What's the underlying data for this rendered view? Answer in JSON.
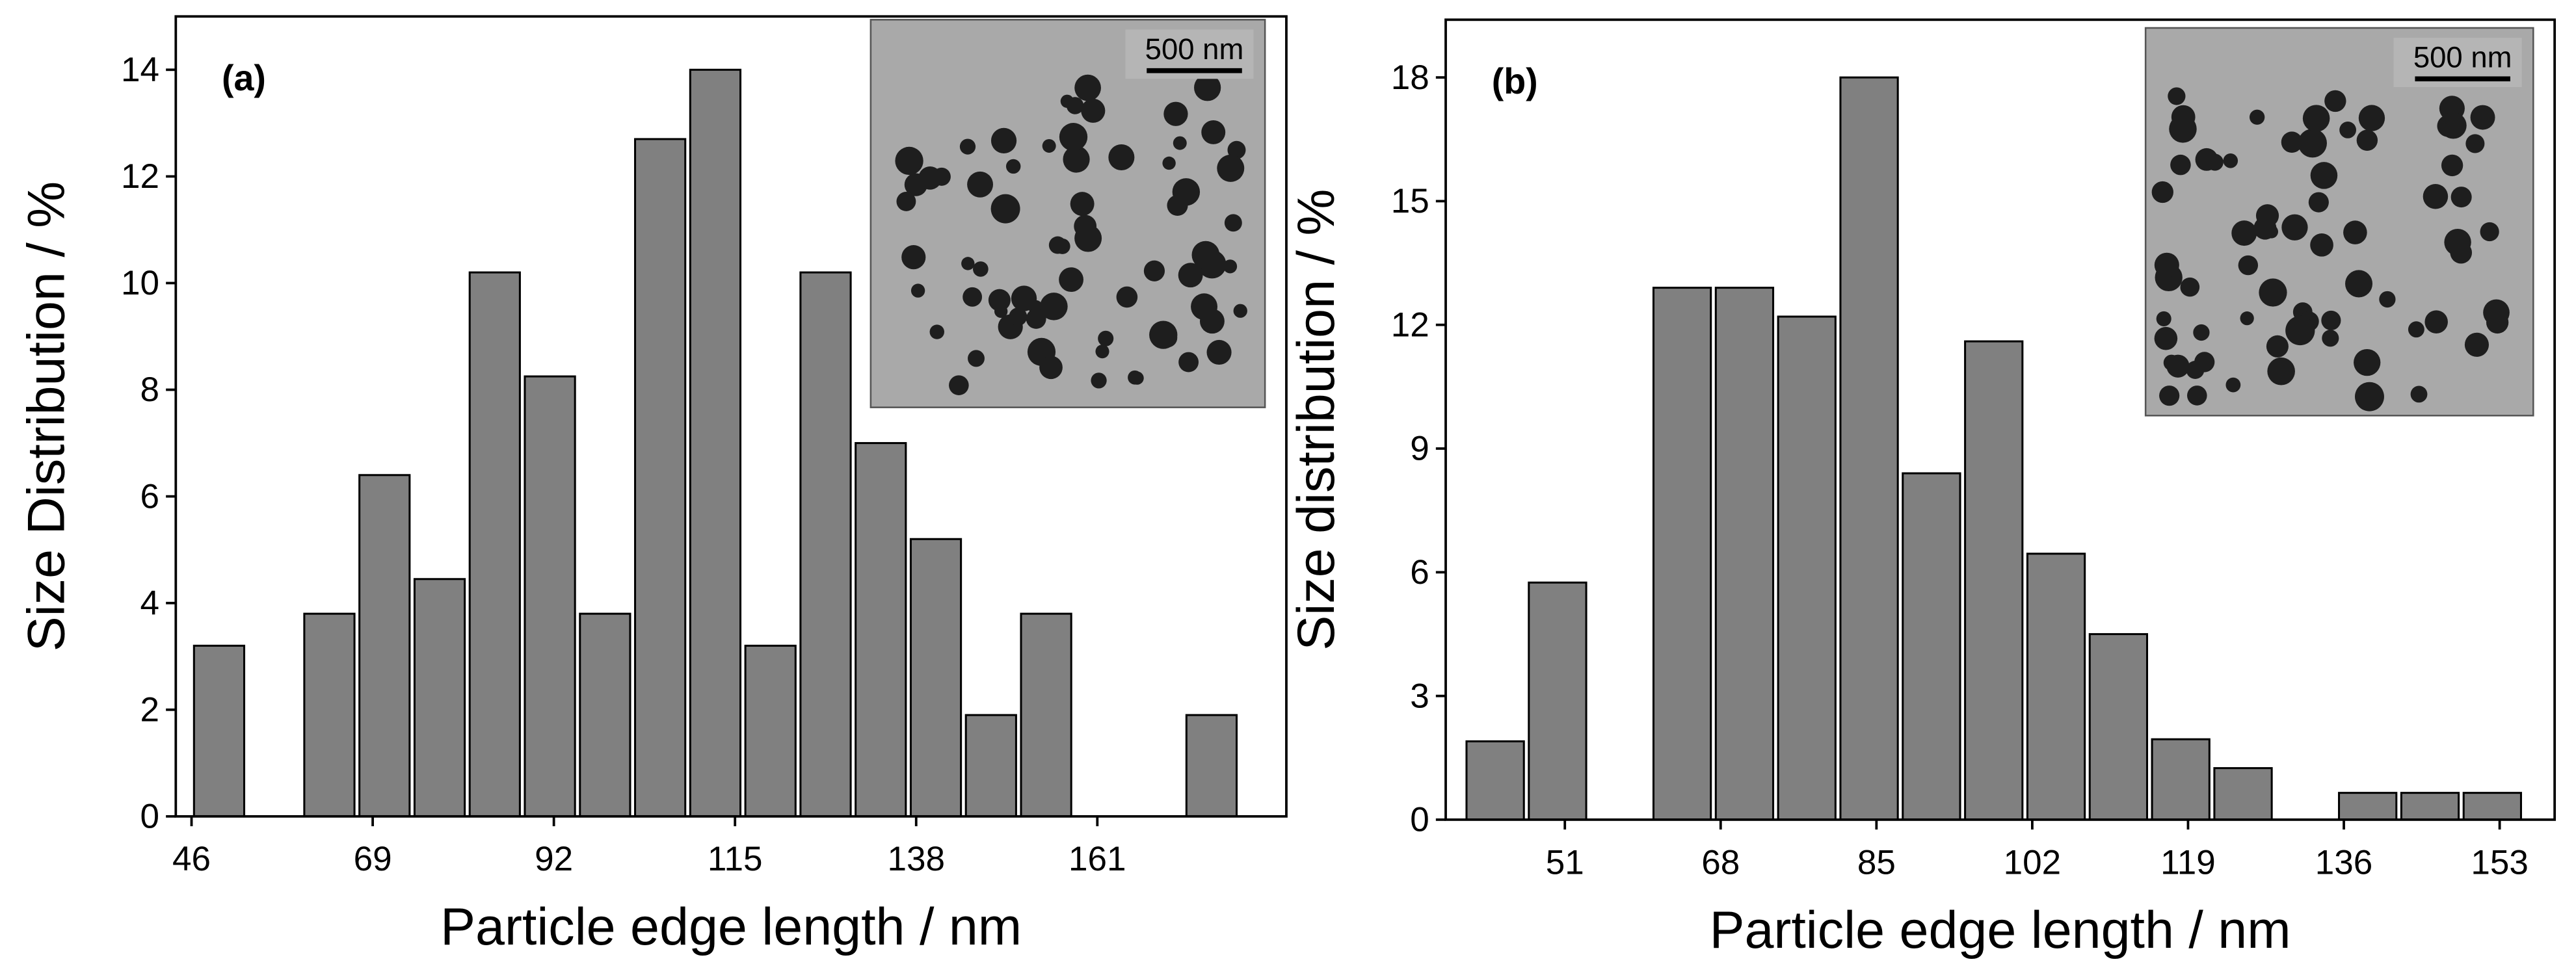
{
  "chart_data": [
    {
      "type": "histogram",
      "panel_label": "(a)",
      "xlabel": "Particle edge length / nm",
      "ylabel": "Size Distribution / %",
      "bins": [
        46,
        53,
        60,
        67,
        74,
        81,
        88,
        95,
        102,
        109,
        116,
        123,
        130,
        137,
        144,
        151,
        158,
        165,
        172,
        179
      ],
      "counts": [
        3.2,
        0,
        3.8,
        6.4,
        4.45,
        10.2,
        8.25,
        3.8,
        12.7,
        14,
        3.2,
        10.2,
        7,
        5.2,
        1.9,
        3.8,
        0,
        0,
        1.9
      ],
      "color": "#808080",
      "xlim": [
        44,
        185
      ],
      "ylim": [
        0,
        15
      ],
      "xticks": [
        46,
        69,
        92,
        115,
        138,
        161
      ],
      "yticks": [
        0,
        2,
        4,
        6,
        8,
        10,
        12,
        14
      ],
      "inset_scale_label": "500 nm"
    },
    {
      "type": "histogram",
      "panel_label": "(b)",
      "xlabel": "Particle edge length / nm",
      "ylabel": "Size distribution / %",
      "bins": [
        40,
        46.8,
        53.6,
        60.4,
        67.2,
        74,
        80.8,
        87.6,
        94.4,
        101.2,
        108,
        114.8,
        121.6,
        128.4,
        135.2,
        142,
        148.8,
        155.6
      ],
      "counts": [
        1.9,
        5.75,
        0,
        12.9,
        12.9,
        12.2,
        18,
        8.4,
        11.6,
        6.45,
        4.5,
        1.95,
        1.25,
        0,
        0.65,
        0.65,
        0.65
      ],
      "color": "#808080",
      "xlim": [
        38,
        159
      ],
      "ylim": [
        0,
        19.4
      ],
      "xticks": [
        51,
        68,
        85,
        102,
        119,
        136,
        153
      ],
      "yticks": [
        0,
        3,
        6,
        9,
        12,
        15,
        18
      ],
      "inset_scale_label": "500 nm"
    }
  ]
}
